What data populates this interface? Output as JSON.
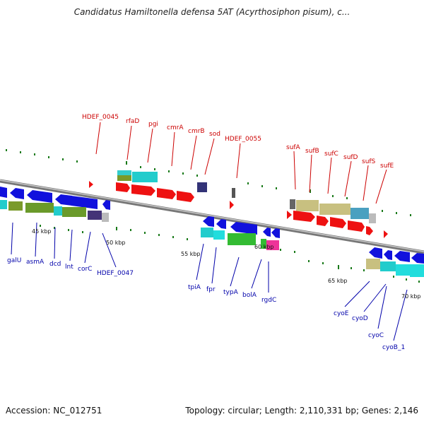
{
  "title": "Candidatus Hamiltonella defensa 5AT (Acyrthosiphon pisum), c...",
  "footer": {
    "accession": "Accession: NC_012751",
    "summary": "Topology: circular; Length: 2,110,331 bp; Genes: 2,146"
  },
  "colors": {
    "forward_gene": "#ee1111",
    "reverse_gene": "#1111dd",
    "forward_label": "#cc0000",
    "reverse_label": "#0000aa",
    "backbone": "#888888",
    "tick": "#1a7a1a"
  },
  "scale_ticks": [
    "45 kbp",
    "50 kbp",
    "55 kbp",
    "60 kbp",
    "65 kbp",
    "70 kbp"
  ],
  "forward_genes": [
    "HDEF_0045",
    "rfaD",
    "pgi",
    "cmrA",
    "cmrB",
    "sod",
    "HDEF_0055",
    "sufA",
    "sufB",
    "sufC",
    "sufD",
    "sufS",
    "sufE"
  ],
  "reverse_genes": [
    "galU",
    "asmA",
    "dcd",
    "lnt",
    "corC",
    "HDEF_0047",
    "tpiA",
    "fpr",
    "typA",
    "bolA",
    "rgdC",
    "cyoE",
    "cyoD",
    "cyoC",
    "cyoB_1"
  ]
}
